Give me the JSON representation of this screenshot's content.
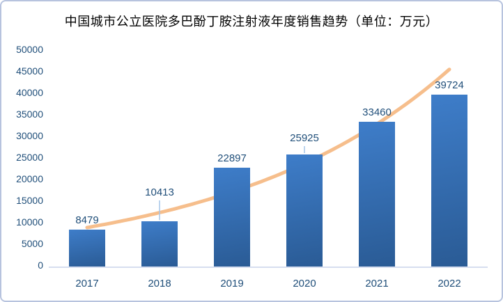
{
  "title": "中国城市公立医院多巴酚丁胺注射液年度销售趋势（单位：万元）",
  "chart_data": {
    "type": "bar",
    "title": "中国城市公立医院多巴酚丁胺注射液年度销售趋势（单位：万元）",
    "categories": [
      "2017",
      "2018",
      "2019",
      "2020",
      "2021",
      "2022"
    ],
    "values": [
      8479,
      10413,
      22897,
      25925,
      33460,
      39724
    ],
    "data_labels": [
      "8479",
      "10413",
      "22897",
      "25925",
      "33460",
      "39724"
    ],
    "xlabel": "",
    "ylabel": "",
    "ylim": [
      0,
      50000
    ],
    "yticks": [
      0,
      5000,
      10000,
      15000,
      20000,
      25000,
      30000,
      35000,
      40000,
      45000,
      50000
    ],
    "grid": false,
    "legend": "none",
    "trendline": {
      "type": "exponential"
    },
    "colors": {
      "bar_gradient_top": "#3E7DC9",
      "bar_gradient_bottom": "#2A5B95",
      "value_label": "#1F4E79",
      "tick_label": "#1F4E79",
      "trendline": "#F6BE8C",
      "leader_line": "#A6C5E8",
      "axis_line": "#D6DEEF",
      "border": "#B7C3DE",
      "title": "#000000",
      "background": "#FFFFFF"
    }
  }
}
